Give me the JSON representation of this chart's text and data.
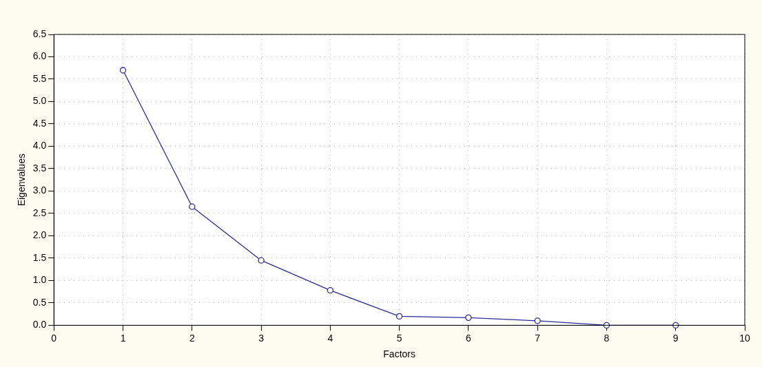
{
  "chart_data": {
    "type": "line",
    "xlabel": "Factors",
    "ylabel": "Eigenvalues",
    "x": [
      1,
      2,
      3,
      4,
      5,
      6,
      7,
      8,
      9
    ],
    "series": [
      {
        "color": "#2b2b96",
        "values": [
          5.7,
          2.65,
          1.45,
          0.78,
          0.2,
          0.17,
          0.1,
          0.0,
          0.0
        ]
      }
    ],
    "xlim": [
      0,
      10
    ],
    "xticks": [
      0,
      1,
      2,
      3,
      4,
      5,
      6,
      7,
      8,
      9,
      10
    ],
    "ylim": [
      0,
      6.5
    ],
    "yticks": [
      {
        "value": 0,
        "label": "0.0"
      },
      {
        "value": 0.5,
        "label": "0.5"
      },
      {
        "value": 1,
        "label": "1.0"
      },
      {
        "value": 1.5,
        "label": "1.5"
      },
      {
        "value": 2,
        "label": "2.0"
      },
      {
        "value": 2.5,
        "label": "2.5"
      },
      {
        "value": 3,
        "label": "3.0"
      },
      {
        "value": 3.5,
        "label": "3.5"
      },
      {
        "value": 4,
        "label": "4.0"
      },
      {
        "value": 4.5,
        "label": "4.5"
      },
      {
        "value": 5,
        "label": "5.0"
      },
      {
        "value": 5.5,
        "label": "5.5"
      },
      {
        "value": 6,
        "label": "6.0"
      },
      {
        "value": 6.5,
        "label": "6.5"
      }
    ],
    "grid": true,
    "marker": "circle",
    "line_style": "solid",
    "legend": false
  }
}
